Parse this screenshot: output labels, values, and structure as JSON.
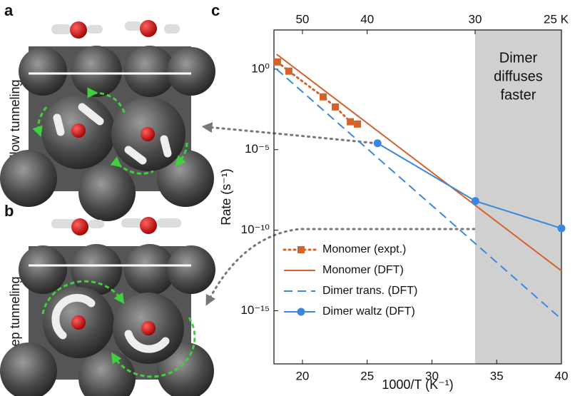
{
  "panels": {
    "a": {
      "label": "a",
      "caption": "Shallow tunneling"
    },
    "b": {
      "label": "b",
      "caption": "Deep tunneling"
    }
  },
  "chart_data": {
    "type": "line",
    "panel_label": "c",
    "xlabel": "1000/T (K⁻¹)",
    "ylabel": "Rate (s⁻¹)",
    "xlim": [
      17.8,
      40
    ],
    "xticks": [
      20,
      25,
      30,
      35,
      40
    ],
    "top_ticks": [
      50,
      40,
      30,
      {
        "value": 25,
        "label": "25 K"
      }
    ],
    "ylim": [
      5e-19,
      270
    ],
    "log_y": true,
    "yticks": [
      {
        "value": 1,
        "label": "10⁰"
      },
      {
        "value": 1e-05,
        "label": "10⁻⁵"
      },
      {
        "value": 1e-10,
        "label": "10⁻¹⁰"
      },
      {
        "value": 1e-15,
        "label": "10⁻¹⁵"
      }
    ],
    "shaded_region": {
      "x": [
        33.33,
        40
      ],
      "color": "#d0d0d0",
      "text": [
        "Dimer",
        "diffuses",
        "faster"
      ]
    },
    "legend": "lower left",
    "series": [
      {
        "name": "Monomer (expt.)",
        "color": "#d4622b",
        "line_style": "dotted",
        "marker": "square",
        "x": [
          18.07,
          18.95,
          21.6,
          22.54,
          23.7,
          24.25
        ],
        "values": [
          2.8,
          0.75,
          0.019,
          0.0045,
          0.00054,
          0.00039
        ]
      },
      {
        "name": "Monomer (DFT)",
        "color": "#d4622b",
        "line_style": "solid",
        "marker": "none",
        "x": [
          18,
          40
        ],
        "values": [
          8.5,
          3e-13
        ]
      },
      {
        "name": "Dimer trans. (DFT)",
        "color": "#3b87e0",
        "line_style": "dashed",
        "marker": "none",
        "x": [
          18,
          40
        ],
        "values": [
          1,
          3e-16
        ]
      },
      {
        "name": "Dimer waltz (DFT)",
        "color": "#3b87e0",
        "line_style": "solid",
        "marker": "circle",
        "x": [
          25.8,
          33.35,
          40
        ],
        "values": [
          2.5e-05,
          6.5e-09,
          1.3e-10
        ]
      }
    ]
  }
}
